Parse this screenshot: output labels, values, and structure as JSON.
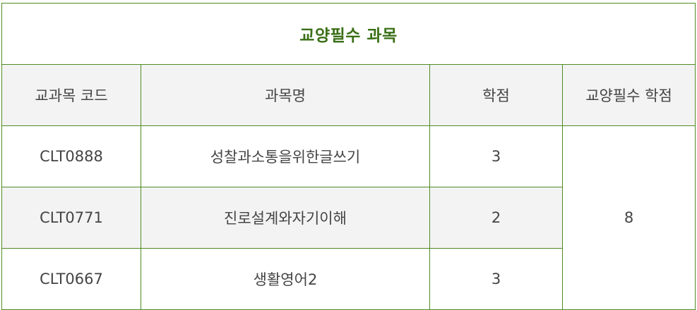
{
  "table": {
    "title": "교양필수 과목",
    "headers": {
      "code": "교과목 코드",
      "name": "과목명",
      "credits": "학점",
      "required_credits": "교양필수 학점"
    },
    "rows": [
      {
        "code": "CLT0888",
        "name": "성찰과소통을위한글쓰기",
        "credits": "3"
      },
      {
        "code": "CLT0771",
        "name": "진로설계와자기이해",
        "credits": "2"
      },
      {
        "code": "CLT0667",
        "name": "생활영어2",
        "credits": "3"
      }
    ],
    "required_credits_total": "8"
  },
  "colors": {
    "border": "#4f8a24",
    "title": "#3a6f16",
    "header_bg": "#f3f3f3"
  }
}
